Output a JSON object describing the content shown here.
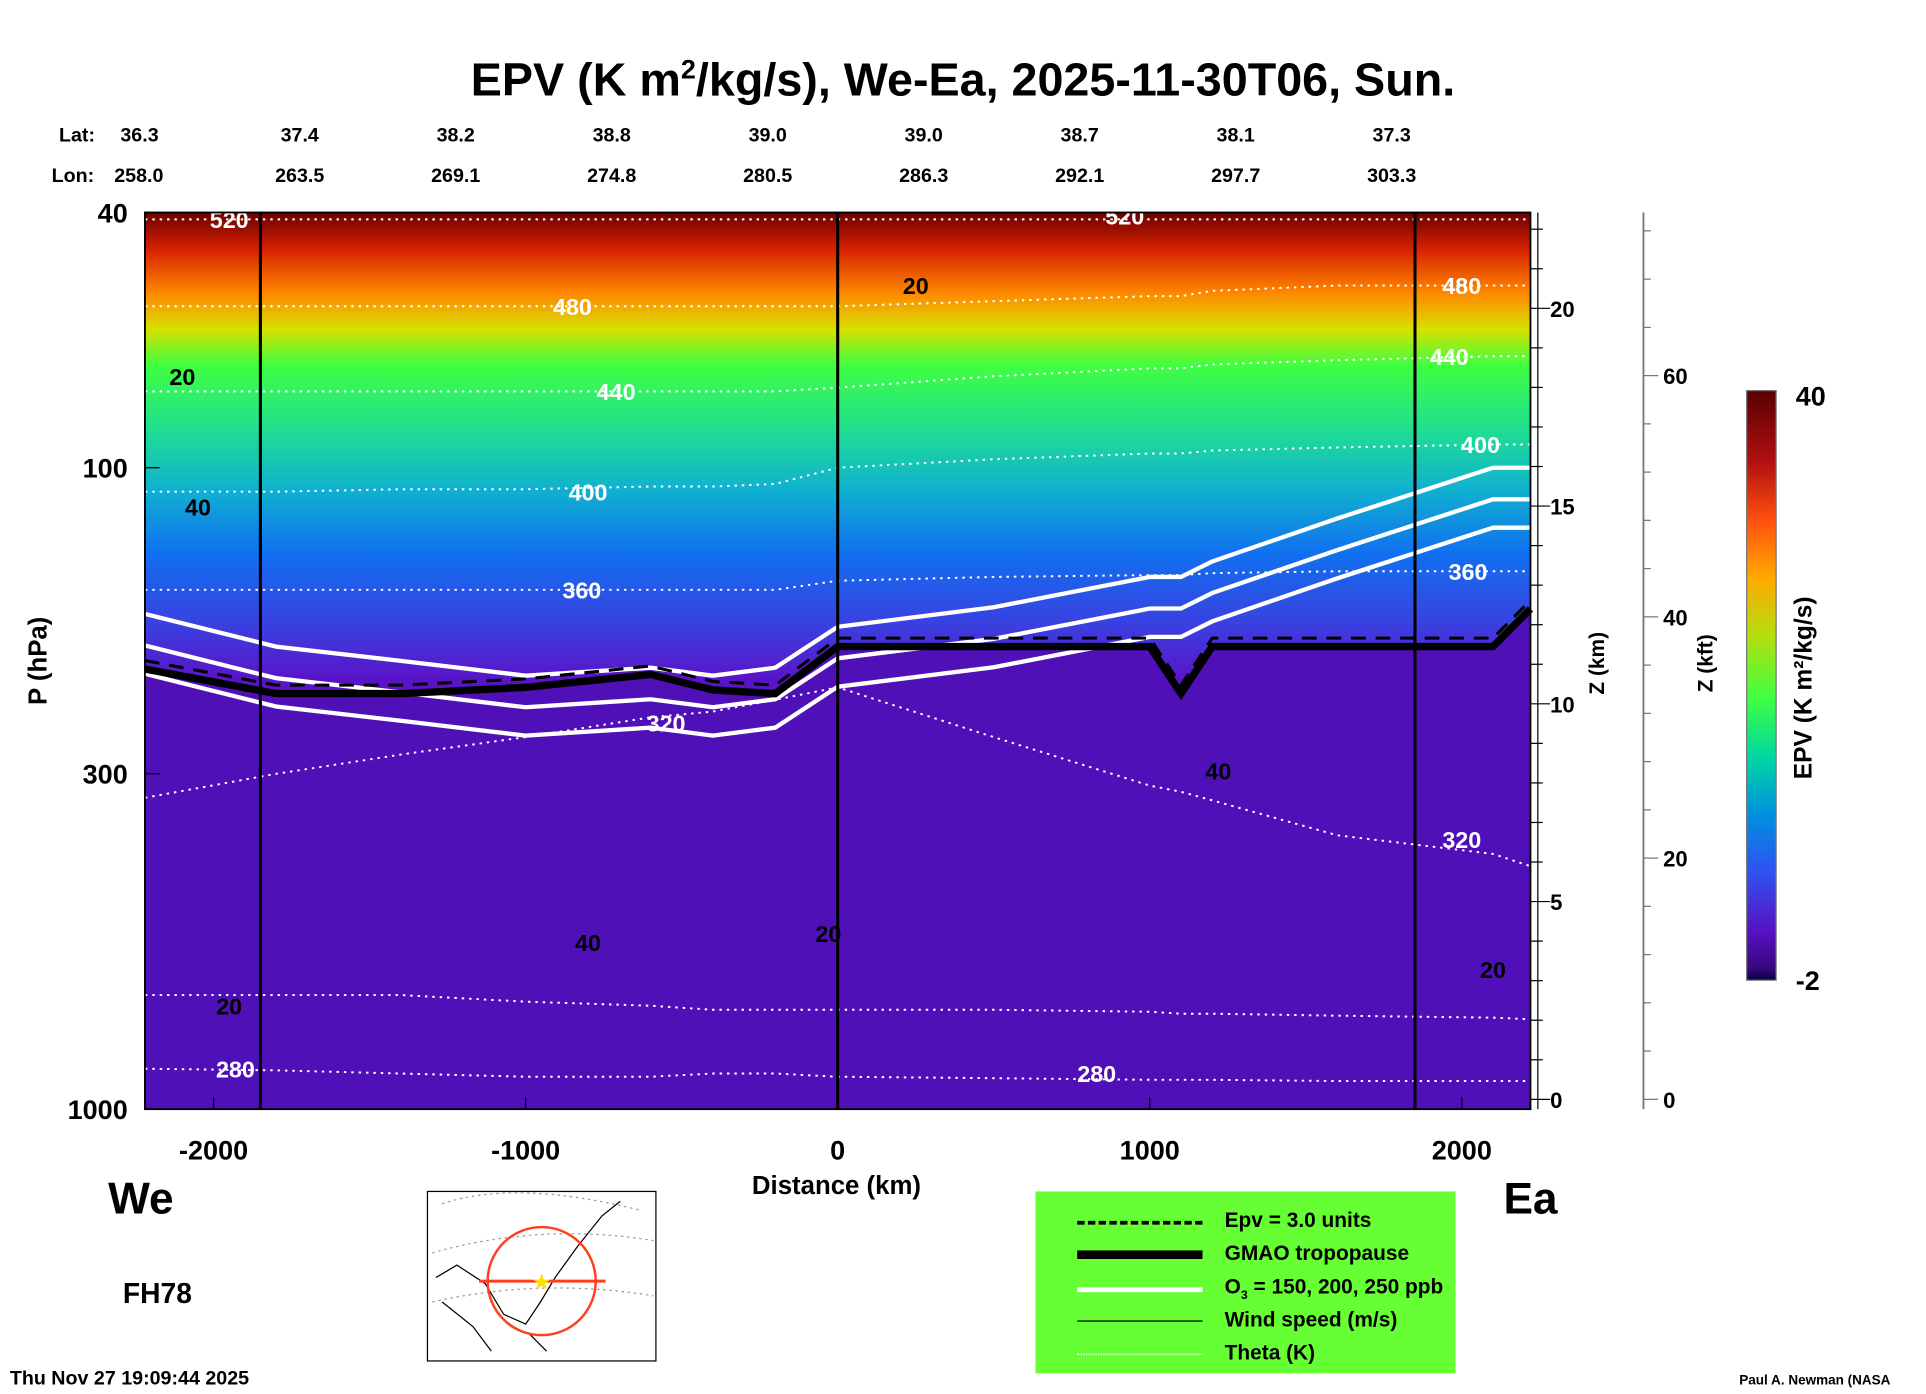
{
  "title": {
    "pre": "EPV (K m",
    "sup": "2",
    "post": "/kg/s), We-Ea, 2025-11-30T06, Sun."
  },
  "lat_label": "Lat:",
  "lon_label": "Lon:",
  "lats": [
    "36.3",
    "37.4",
    "38.2",
    "38.8",
    "39.0",
    "39.0",
    "38.7",
    "38.1",
    "37.3"
  ],
  "lons": [
    "258.0",
    "263.5",
    "269.1",
    "274.8",
    "280.5",
    "286.3",
    "292.1",
    "297.7",
    "303.3"
  ],
  "west_label": "We",
  "east_label": "Ea",
  "forecast_hour": "FH78",
  "timestamp": "Thu Nov 27 19:09:44 2025",
  "credit": "Paul A. Newman (NASA",
  "legend": {
    "items": [
      {
        "label": "Epv = 3.0 units",
        "style": "dashed"
      },
      {
        "label": "GMAO tropopause",
        "style": "thick"
      },
      {
        "label_pre": "O",
        "label_sub": "3",
        "label_post": " = 150, 200, 250 ppb",
        "style": "white"
      },
      {
        "label": "Wind speed (m/s)",
        "style": "thin"
      },
      {
        "label": "Theta (K)",
        "style": "dotted"
      }
    ],
    "background": "#66ff33"
  },
  "chart_data": {
    "type": "heatmap",
    "xlabel": "Distance (km)",
    "ylabel": "P (hPa)",
    "xlim": [
      -2220,
      2220
    ],
    "ylim": [
      1000,
      40
    ],
    "yscale": "log",
    "xticks": [
      -2000,
      -1000,
      0,
      1000,
      2000
    ],
    "xtick_labels": [
      "-2000",
      "-1000",
      "0",
      "1000",
      "2000"
    ],
    "yticks": [
      40,
      100,
      300,
      1000
    ],
    "ytick_labels": [
      "40",
      "100",
      "300",
      "1000"
    ],
    "z_km_axis": {
      "label": "Z (km)",
      "ticks": [
        "20",
        "15",
        "10",
        "5",
        "0"
      ],
      "values": [
        20,
        15,
        10,
        5,
        0
      ]
    },
    "z_kft_axis": {
      "label": "Z (kft)",
      "ticks": [
        "60",
        "40",
        "20",
        "0"
      ],
      "values": [
        60,
        40,
        20,
        0
      ]
    },
    "colorbar": {
      "label": "EPV (K m²/kg/s)",
      "min": -2,
      "max": 40,
      "min_label": "-2",
      "max_label": "40"
    },
    "vertical_lines_km": [
      -1850,
      0,
      1850
    ],
    "x": [
      -2220,
      -1800,
      -1400,
      -1000,
      -600,
      -400,
      -200,
      0,
      500,
      1000,
      1100,
      1200,
      1600,
      2100,
      2220
    ],
    "tropopause_hpa": [
      206,
      225,
      225,
      220,
      210,
      222,
      225,
      190,
      190,
      190,
      225,
      190,
      190,
      190,
      166
    ],
    "ozone_150_hpa": [
      169,
      190,
      200,
      211,
      205,
      211,
      205,
      177,
      165,
      148,
      148,
      140,
      120,
      100,
      100
    ],
    "theta_contours": [
      {
        "level": 520,
        "hpa": [
          41,
          41,
          41,
          41,
          41,
          41,
          41,
          41,
          41,
          41,
          41,
          41,
          41,
          41,
          41
        ]
      },
      {
        "level": 480,
        "hpa": [
          56,
          56,
          56,
          56,
          56,
          56,
          56,
          56,
          55,
          54,
          54,
          53,
          52,
          52,
          52
        ]
      },
      {
        "level": 440,
        "hpa": [
          76,
          76,
          76,
          76,
          76,
          76,
          76,
          75,
          72,
          70,
          70,
          69,
          68,
          67,
          67
        ]
      },
      {
        "level": 400,
        "hpa": [
          109,
          109,
          108,
          108,
          107,
          107,
          106,
          100,
          97,
          95,
          95,
          94,
          93,
          92,
          92
        ]
      },
      {
        "level": 360,
        "hpa": [
          155,
          155,
          155,
          155,
          155,
          155,
          155,
          150,
          148,
          147,
          147,
          146,
          145,
          145,
          145
        ]
      },
      {
        "level": 320,
        "hpa": [
          327,
          300,
          280,
          263,
          245,
          240,
          230,
          220,
          263,
          313,
          320,
          330,
          374,
          400,
          418
        ]
      },
      {
        "level": 300,
        "hpa": [
          664,
          664,
          664,
          680,
          690,
          700,
          700,
          700,
          700,
          705,
          710,
          710,
          715,
          720,
          724
        ]
      },
      {
        "level": 280,
        "hpa": [
          865,
          870,
          880,
          890,
          890,
          880,
          880,
          890,
          895,
          900,
          900,
          900,
          904,
          904,
          904
        ]
      }
    ],
    "contour_labels": [
      {
        "text": "520",
        "x": -1950,
        "p": 41,
        "color": "white"
      },
      {
        "text": "520",
        "x": 920,
        "p": 40.5,
        "color": "white"
      },
      {
        "text": "480",
        "x": -850,
        "p": 56,
        "color": "white"
      },
      {
        "text": "480",
        "x": 2000,
        "p": 52,
        "color": "white"
      },
      {
        "text": "440",
        "x": -710,
        "p": 76,
        "color": "white"
      },
      {
        "text": "440",
        "x": 1960,
        "p": 67,
        "color": "white"
      },
      {
        "text": "400",
        "x": -800,
        "p": 109,
        "color": "white"
      },
      {
        "text": "400",
        "x": 2060,
        "p": 92,
        "color": "white"
      },
      {
        "text": "360",
        "x": -820,
        "p": 155,
        "color": "white"
      },
      {
        "text": "360",
        "x": 2020,
        "p": 145,
        "color": "white"
      },
      {
        "text": "320",
        "x": -550,
        "p": 250,
        "color": "white"
      },
      {
        "text": "320",
        "x": 2000,
        "p": 380,
        "color": "white"
      },
      {
        "text": "280",
        "x": -1930,
        "p": 865,
        "color": "white"
      },
      {
        "text": "280",
        "x": 830,
        "p": 880,
        "color": "white"
      },
      {
        "text": "20",
        "x": -2100,
        "p": 72,
        "color": "black"
      },
      {
        "text": "40",
        "x": -2050,
        "p": 115,
        "color": "black"
      },
      {
        "text": "20",
        "x": 250,
        "p": 52,
        "color": "black"
      },
      {
        "text": "40",
        "x": -800,
        "p": 550,
        "color": "black"
      },
      {
        "text": "20",
        "x": -1950,
        "p": 690,
        "color": "black"
      },
      {
        "text": "20",
        "x": -30,
        "p": 532,
        "color": "black"
      },
      {
        "text": "40",
        "x": 1220,
        "p": 297,
        "color": "black"
      },
      {
        "text": "20",
        "x": 2100,
        "p": 605,
        "color": "black"
      }
    ]
  }
}
